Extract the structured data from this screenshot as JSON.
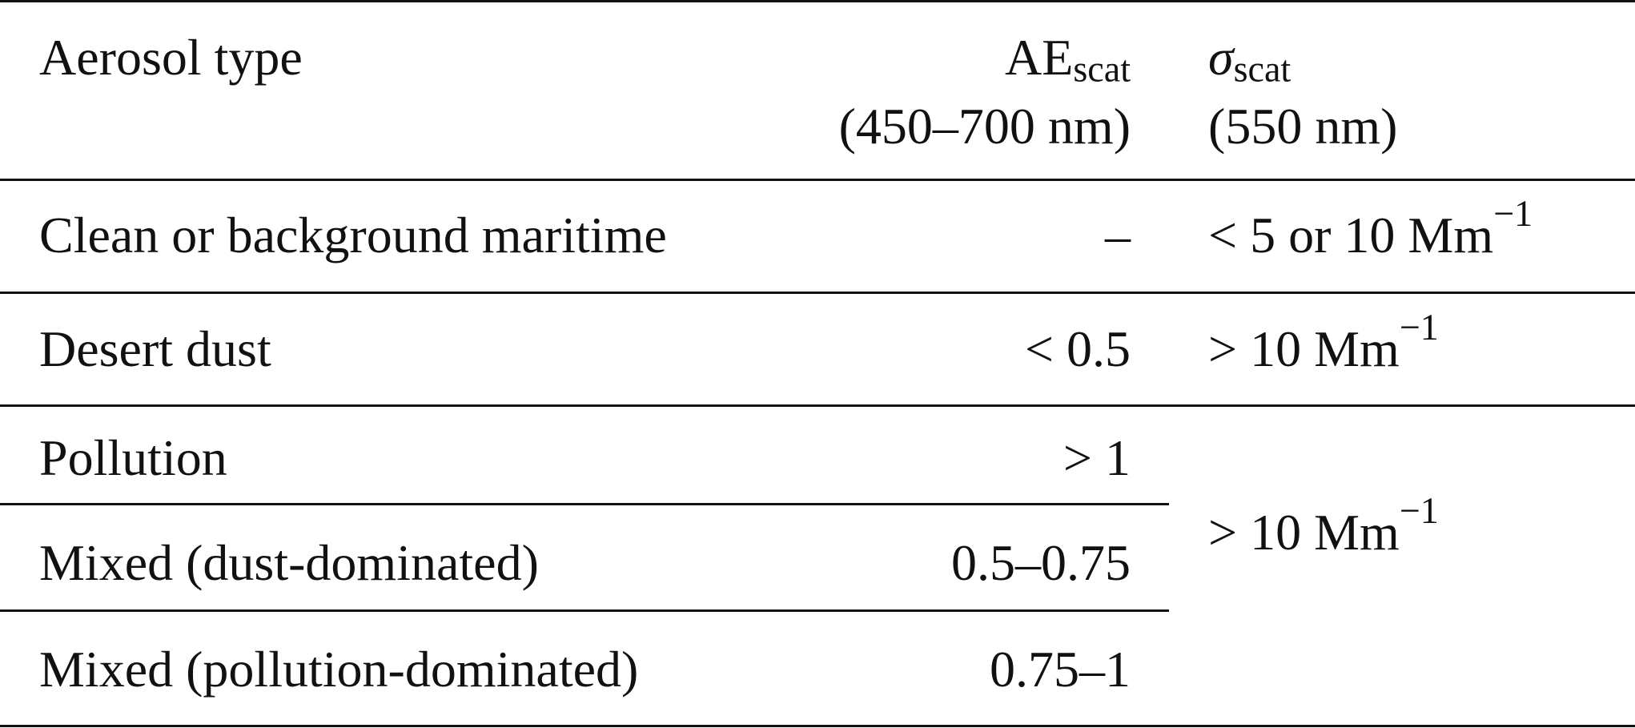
{
  "table": {
    "headers": {
      "col1": "Aerosol type",
      "col2": {
        "symbol": "AE",
        "subscript": "scat",
        "range": "(450–700 nm)"
      },
      "col3": {
        "symbol": "σ",
        "subscript": "scat",
        "wavelength": "(550 nm)"
      }
    },
    "rows": [
      {
        "type": "Clean or background maritime",
        "ae": "–",
        "sigma_prefix": "< 5 or 10 Mm",
        "sigma_exp": "−1"
      },
      {
        "type": "Desert dust",
        "ae": "< 0.5",
        "sigma_prefix": "> 10 Mm",
        "sigma_exp": "−1"
      },
      {
        "type": "Pollution",
        "ae": "> 1"
      },
      {
        "type": "Mixed (dust-dominated)",
        "ae": "0.5–0.75"
      },
      {
        "type": "Mixed (pollution-dominated)",
        "ae": "0.75–1"
      }
    ],
    "merged_sigma": {
      "prefix": "> 10 Mm",
      "exp": "−1"
    }
  }
}
